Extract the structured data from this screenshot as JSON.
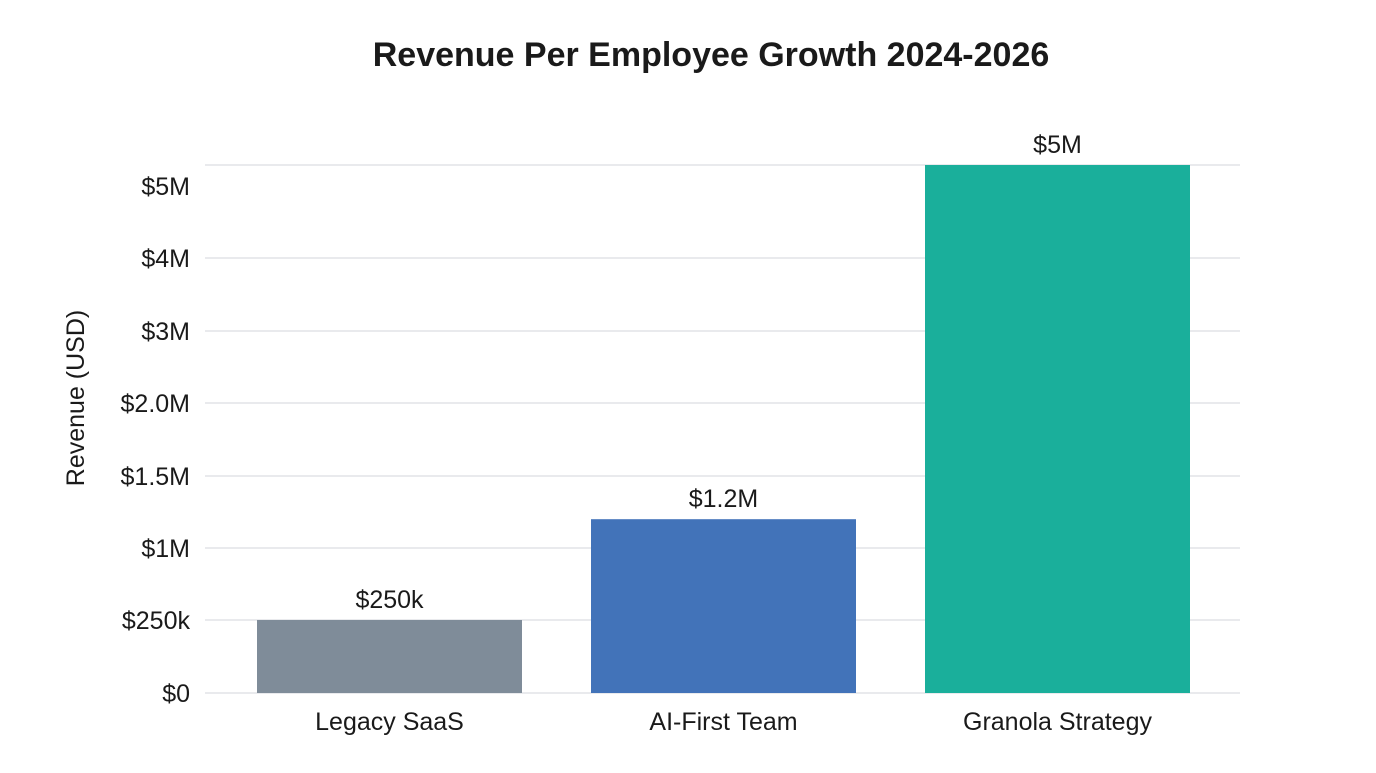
{
  "chart_data": {
    "type": "bar",
    "title": "Revenue Per Employee Growth 2024-2026",
    "xlabel": "",
    "ylabel": "Revenue (USD)",
    "categories": [
      "Legacy SaaS",
      "AI-First Team",
      "Granola Strategy"
    ],
    "values": [
      250000,
      1200000,
      5000000
    ],
    "data_labels": [
      "$250k",
      "$1.2M",
      "$5M"
    ],
    "colors": [
      "#7f8c99",
      "#4273b9",
      "#1aaf9b"
    ],
    "y_ticks": [
      {
        "value": 0,
        "label": "$0"
      },
      {
        "value": 250000,
        "label": "$250k"
      },
      {
        "value": 1000000,
        "label": "$1M"
      },
      {
        "value": 1500000,
        "label": "$1.5M"
      },
      {
        "value": 2000000,
        "label": "$2.0M"
      },
      {
        "value": 3000000,
        "label": "$3M"
      },
      {
        "value": 4000000,
        "label": "$4M"
      },
      {
        "value": 5000000,
        "label": "$5M"
      }
    ],
    "ylim": [
      0,
      5000000
    ],
    "grid": true,
    "legend": "none"
  }
}
